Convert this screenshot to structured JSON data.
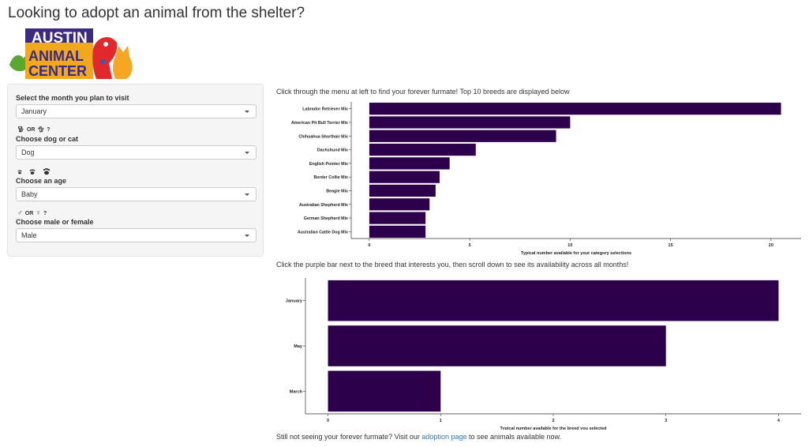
{
  "page": {
    "title": "Looking to adopt an animal from the shelter?"
  },
  "logo": {
    "line1": "AUSTIN",
    "line2": "ANIMAL",
    "line3": "CENTER"
  },
  "sidebar": {
    "month": {
      "label": "Select the month you plan to visit",
      "value": "January"
    },
    "species": {
      "icons_or": "OR",
      "icons_q": "?",
      "label": "Choose dog or cat",
      "value": "Dog"
    },
    "age": {
      "label": "Choose an age",
      "value": "Baby"
    },
    "sex": {
      "icons_or": "OR",
      "icons_q": "?",
      "label": "Choose male or female",
      "value": "Male"
    }
  },
  "instructions": {
    "top": "Click through the menu at left to find your forever furmate! Top 10 breeds are displayed below",
    "middle": "Click the purple bar next to the breed that interests you, then scroll down to see its availability across all months!"
  },
  "footer": {
    "before": "Still not seeing your forever furmate? Visit our ",
    "link": "adoption page",
    "after": " to see animals available now."
  },
  "colors": {
    "bar": "#2d004b",
    "link": "#337ab7"
  },
  "chart_data": [
    {
      "type": "bar",
      "orientation": "horizontal",
      "categories": [
        "Labrador Retriever Mix",
        "American Pit Bull Terrier Mix",
        "Chihuahua Shorthair Mix",
        "Dachshund Mix",
        "English Pointer Mix",
        "Border Collie Mix",
        "Beagle Mix",
        "Australian Shepherd Mix",
        "German Shepherd Mix",
        "Australian Cattle Dog Mix"
      ],
      "values": [
        20.5,
        10,
        9.3,
        5.3,
        4.0,
        3.5,
        3.3,
        3.0,
        2.8,
        2.8
      ],
      "xlabel": "Typical number available for your category selections",
      "xlim": [
        -0.9,
        21.5
      ],
      "xticks": [
        0,
        5,
        10,
        15,
        20
      ]
    },
    {
      "type": "bar",
      "orientation": "horizontal",
      "categories": [
        "January",
        "May",
        "March"
      ],
      "values": [
        4,
        3,
        1
      ],
      "xlabel": "Typical number available for the breed you selected",
      "xlim": [
        -0.2,
        4.2
      ],
      "xticks": [
        0,
        1,
        2,
        3,
        4
      ]
    }
  ]
}
